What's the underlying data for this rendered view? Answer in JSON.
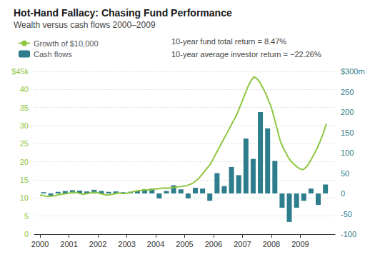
{
  "chart_data": {
    "type": "line",
    "title": "Hot-Hand Fallacy: Chasing Fund Performance",
    "subtitle": "Wealth versus cash flows 2000–2009",
    "annotations": [
      "10-year fund total return = 8.47%",
      "10-year average investor return = −22.26%"
    ],
    "legend": "upper left",
    "grid": true,
    "xlim": [
      1999.8,
      2010.2
    ],
    "xticks": [
      2000,
      2001,
      2002,
      2003,
      2004,
      2005,
      2006,
      2007,
      2008,
      2009
    ],
    "ylim": [
      0,
      45
    ],
    "yticks": [
      0,
      5,
      10,
      15,
      20,
      25,
      30,
      35,
      40,
      {
        "value": 45,
        "label": "$45k"
      }
    ],
    "y2lim": [
      -100,
      300
    ],
    "y2ticks": [
      -100,
      -50,
      0,
      50,
      100,
      150,
      200,
      250,
      {
        "value": 300,
        "label": "$300m"
      }
    ],
    "series": [
      {
        "name": "Growth of $10,000",
        "type": "line",
        "color": "#8dc63f",
        "x": [
          2000.0,
          2000.1,
          2000.2,
          2000.3,
          2000.4,
          2000.5,
          2000.6,
          2000.7,
          2000.8,
          2000.9,
          2001.0,
          2001.1,
          2001.2,
          2001.3,
          2001.4,
          2001.5,
          2001.6,
          2001.7,
          2001.8,
          2001.9,
          2002.0,
          2002.1,
          2002.2,
          2002.3,
          2002.4,
          2002.5,
          2002.6,
          2002.7,
          2002.8,
          2002.9,
          2003.0,
          2003.1,
          2003.2,
          2003.3,
          2003.4,
          2003.5,
          2003.6,
          2003.7,
          2003.8,
          2003.9,
          2004.0,
          2004.1,
          2004.2,
          2004.3,
          2004.4,
          2004.5,
          2004.6,
          2004.7,
          2004.8,
          2004.9,
          2005.0,
          2005.1,
          2005.2,
          2005.3,
          2005.4,
          2005.5,
          2005.6,
          2005.7,
          2005.8,
          2005.9,
          2006.0,
          2006.1,
          2006.2,
          2006.3,
          2006.4,
          2006.5,
          2006.6,
          2006.7,
          2006.8,
          2006.9,
          2007.0,
          2007.1,
          2007.2,
          2007.3,
          2007.4,
          2007.5,
          2007.6,
          2007.7,
          2007.8,
          2007.9,
          2008.0,
          2008.1,
          2008.2,
          2008.3,
          2008.4,
          2008.5,
          2008.6,
          2008.7,
          2008.8,
          2008.9,
          2009.0,
          2009.1,
          2009.2,
          2009.3,
          2009.4,
          2009.5,
          2009.6,
          2009.7,
          2009.8,
          2009.9
        ],
        "values": [
          10.8,
          10.7,
          10.5,
          10.4,
          10.5,
          10.6,
          10.8,
          11.0,
          11.1,
          11.2,
          11.3,
          11.5,
          11.6,
          11.4,
          11.2,
          11.0,
          11.2,
          11.3,
          11.5,
          11.6,
          11.4,
          11.2,
          11.0,
          10.8,
          10.9,
          11.0,
          11.2,
          11.4,
          11.3,
          11.2,
          11.3,
          11.5,
          11.7,
          11.9,
          12.0,
          12.1,
          12.3,
          12.2,
          12.3,
          12.4,
          12.5,
          12.6,
          12.7,
          12.8,
          12.7,
          12.8,
          12.9,
          13.0,
          13.1,
          13.2,
          13.3,
          13.5,
          13.8,
          14.2,
          14.8,
          15.5,
          16.5,
          17.5,
          18.5,
          19.5,
          21.0,
          22.5,
          24.0,
          25.5,
          27.0,
          28.5,
          30.0,
          31.5,
          33.0,
          35.0,
          37.0,
          39.0,
          41.0,
          42.5,
          43.5,
          43.0,
          42.0,
          40.5,
          39.0,
          37.0,
          35.0,
          32.0,
          29.0,
          26.0,
          24.0,
          22.5,
          21.0,
          20.0,
          19.2,
          18.5,
          18.0,
          17.8,
          18.5,
          19.5,
          21.0,
          22.5,
          24.0,
          26.0,
          28.0,
          30.5
        ]
      },
      {
        "name": "Cash flows",
        "type": "bar",
        "axis": "y2",
        "color": "#2e7d8c",
        "x": [
          2000.12,
          2000.37,
          2000.62,
          2000.87,
          2001.12,
          2001.37,
          2001.62,
          2001.87,
          2002.12,
          2002.37,
          2002.62,
          2002.87,
          2003.12,
          2003.37,
          2003.62,
          2003.87,
          2004.12,
          2004.37,
          2004.62,
          2004.87,
          2005.12,
          2005.37,
          2005.62,
          2005.87,
          2006.12,
          2006.37,
          2006.62,
          2006.87,
          2007.12,
          2007.37,
          2007.62,
          2007.87,
          2008.12,
          2008.37,
          2008.62,
          2008.87,
          2009.12,
          2009.37,
          2009.62,
          2009.87
        ],
        "values": [
          3,
          -5,
          4,
          6,
          8,
          7,
          5,
          9,
          6,
          4,
          5,
          3,
          4,
          7,
          10,
          12,
          -12,
          6,
          20,
          10,
          -12,
          14,
          12,
          -18,
          50,
          18,
          65,
          45,
          135,
          85,
          200,
          160,
          80,
          -35,
          -70,
          -35,
          -18,
          12,
          -28,
          22
        ]
      }
    ]
  }
}
